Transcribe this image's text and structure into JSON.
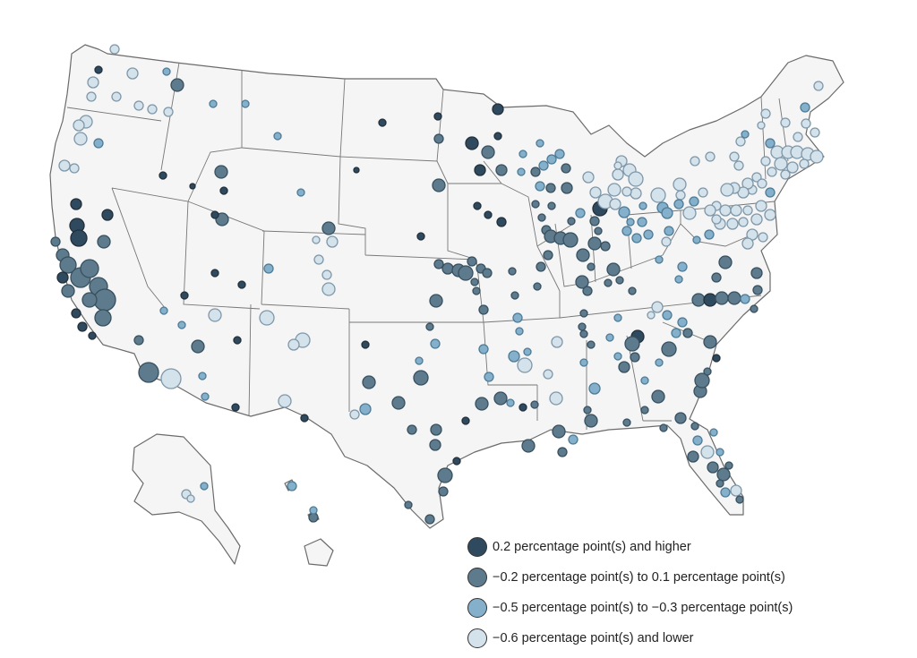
{
  "colors": {
    "high": "#2f4a5e",
    "mid": "#5e7a8d",
    "low": "#85b0cc",
    "lowest": "#d4e2ec",
    "land": "#f5f5f5",
    "outline": "#6b6b6b"
  },
  "legend": [
    {
      "key": "high",
      "label": "0.2 percentage point(s) and higher"
    },
    {
      "key": "mid",
      "label": "−0.2 percentage point(s) to 0.1 percentage point(s)"
    },
    {
      "key": "low",
      "label": "−0.5 percentage point(s) to −0.3 percentage point(s)"
    },
    {
      "key": "lowest",
      "label": "−0.6 percentage point(s) and lower"
    }
  ]
}
